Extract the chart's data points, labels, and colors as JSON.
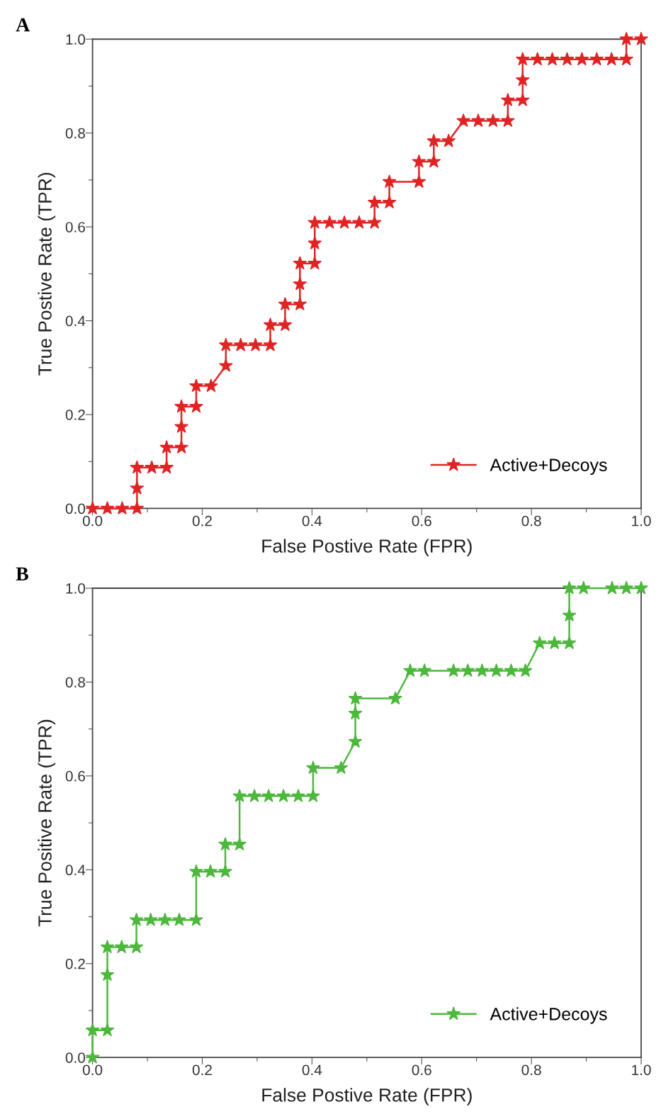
{
  "chart_data": [
    {
      "type": "line",
      "title": "A",
      "xlabel": "False Postive Rate (FPR)",
      "ylabel": "True Postive Rate (TPR)",
      "marker": "star",
      "line_style": "solid",
      "legend": "bottom right",
      "grid": false,
      "xlim": [
        0,
        1
      ],
      "ylim": [
        0,
        1
      ],
      "xticks": [
        {
          "value": 0,
          "label": "0.0"
        },
        {
          "value": 0.1,
          "label": null
        },
        {
          "value": 0.2,
          "label": "0.2"
        },
        {
          "value": 0.3,
          "label": null
        },
        {
          "value": 0.4,
          "label": "0.4"
        },
        {
          "value": 0.5,
          "label": null
        },
        {
          "value": 0.6,
          "label": "0.6"
        },
        {
          "value": 0.7,
          "label": null
        },
        {
          "value": 0.8,
          "label": "0.8"
        },
        {
          "value": 0.9,
          "label": null
        },
        {
          "value": 1,
          "label": "1.0"
        }
      ],
      "yticks": [
        {
          "value": 0,
          "label": "0.0"
        },
        {
          "value": 0.1,
          "label": null
        },
        {
          "value": 0.2,
          "label": "0.2"
        },
        {
          "value": 0.3,
          "label": null
        },
        {
          "value": 0.4,
          "label": "0.4"
        },
        {
          "value": 0.5,
          "label": null
        },
        {
          "value": 0.6,
          "label": "0.6"
        },
        {
          "value": 0.7,
          "label": null
        },
        {
          "value": 0.8,
          "label": "0.8"
        },
        {
          "value": 0.9,
          "label": null
        },
        {
          "value": 1,
          "label": "1.0"
        }
      ],
      "series": [
        {
          "name": "Active+Decoys",
          "color": "#e02424",
          "x": [
            0,
            0.027,
            0.054,
            0.081,
            0.081,
            0.081,
            0.108,
            0.135,
            0.135,
            0.162,
            0.162,
            0.162,
            0.189,
            0.189,
            0.216,
            0.243,
            0.243,
            0.27,
            0.297,
            0.324,
            0.324,
            0.351,
            0.351,
            0.378,
            0.378,
            0.378,
            0.405,
            0.405,
            0.405,
            0.432,
            0.459,
            0.486,
            0.514,
            0.514,
            0.541,
            0.541,
            0.595,
            0.595,
            0.622,
            0.622,
            0.649,
            0.676,
            0.703,
            0.73,
            0.757,
            0.757,
            0.784,
            0.784,
            0.784,
            0.811,
            0.838,
            0.865,
            0.892,
            0.919,
            0.946,
            0.973,
            0.973,
            1.0
          ],
          "values": [
            0,
            0,
            0,
            0,
            0.043,
            0.087,
            0.087,
            0.087,
            0.13,
            0.13,
            0.174,
            0.217,
            0.217,
            0.261,
            0.261,
            0.304,
            0.348,
            0.348,
            0.348,
            0.348,
            0.391,
            0.391,
            0.435,
            0.435,
            0.478,
            0.522,
            0.522,
            0.565,
            0.609,
            0.609,
            0.609,
            0.609,
            0.609,
            0.652,
            0.652,
            0.696,
            0.696,
            0.739,
            0.739,
            0.783,
            0.783,
            0.826,
            0.826,
            0.826,
            0.826,
            0.87,
            0.87,
            0.913,
            0.957,
            0.957,
            0.957,
            0.957,
            0.957,
            0.957,
            0.957,
            0.957,
            1.0,
            1.0
          ]
        }
      ]
    },
    {
      "type": "line",
      "title": "B",
      "xlabel": "False Postive Rate (FPR)",
      "ylabel": "True Positive Rate (TPR)",
      "marker": "star",
      "line_style": "solid",
      "legend": "bottom right",
      "grid": false,
      "xlim": [
        0,
        1
      ],
      "ylim": [
        0,
        1
      ],
      "xticks": [
        {
          "value": 0,
          "label": "0.0"
        },
        {
          "value": 0.1,
          "label": null
        },
        {
          "value": 0.2,
          "label": "0.2"
        },
        {
          "value": 0.3,
          "label": null
        },
        {
          "value": 0.4,
          "label": "0.4"
        },
        {
          "value": 0.5,
          "label": null
        },
        {
          "value": 0.6,
          "label": "0.6"
        },
        {
          "value": 0.7,
          "label": null
        },
        {
          "value": 0.8,
          "label": "0.8"
        },
        {
          "value": 0.9,
          "label": null
        },
        {
          "value": 1,
          "label": "1.0"
        }
      ],
      "yticks": [
        {
          "value": 0,
          "label": "0.0"
        },
        {
          "value": 0.1,
          "label": null
        },
        {
          "value": 0.2,
          "label": "0.2"
        },
        {
          "value": 0.3,
          "label": null
        },
        {
          "value": 0.4,
          "label": "0.4"
        },
        {
          "value": 0.5,
          "label": null
        },
        {
          "value": 0.6,
          "label": "0.6"
        },
        {
          "value": 0.7,
          "label": null
        },
        {
          "value": 0.8,
          "label": "0.8"
        },
        {
          "value": 0.9,
          "label": null
        },
        {
          "value": 1,
          "label": "1.0"
        }
      ],
      "series": [
        {
          "name": "Active+Decoys",
          "color": "#4cb83c",
          "x": [
            0,
            0,
            0.027,
            0.027,
            0.027,
            0.053,
            0.08,
            0.08,
            0.106,
            0.132,
            0.158,
            0.189,
            0.189,
            0.215,
            0.242,
            0.242,
            0.268,
            0.268,
            0.295,
            0.321,
            0.348,
            0.375,
            0.402,
            0.402,
            0.453,
            0.479,
            0.479,
            0.479,
            0.552,
            0.579,
            0.605,
            0.658,
            0.684,
            0.71,
            0.736,
            0.763,
            0.789,
            0.815,
            0.842,
            0.869,
            0.869,
            0.869,
            0.895,
            0.947,
            0.973,
            1.0
          ],
          "values": [
            0,
            0.058,
            0.058,
            0.176,
            0.235,
            0.235,
            0.235,
            0.293,
            0.293,
            0.293,
            0.293,
            0.293,
            0.396,
            0.396,
            0.396,
            0.454,
            0.454,
            0.557,
            0.557,
            0.557,
            0.557,
            0.557,
            0.557,
            0.617,
            0.617,
            0.673,
            0.733,
            0.765,
            0.765,
            0.824,
            0.824,
            0.824,
            0.824,
            0.824,
            0.824,
            0.824,
            0.824,
            0.883,
            0.883,
            0.883,
            0.942,
            1.0,
            1.0,
            1.0,
            1.0,
            1.0
          ]
        }
      ]
    }
  ]
}
